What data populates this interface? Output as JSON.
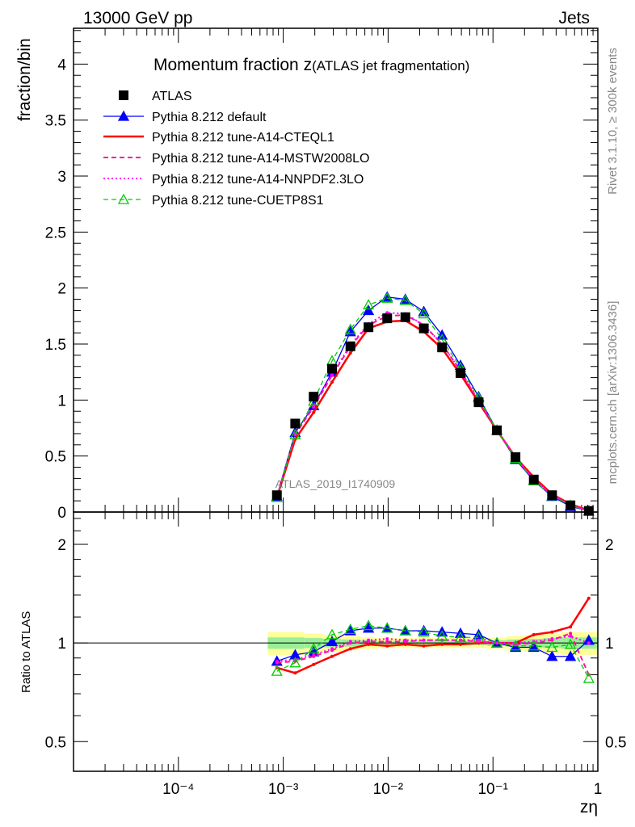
{
  "chart_data": {
    "type": "line",
    "header_left": "13000 GeV pp",
    "header_right": "Jets",
    "title_main": "Momentum fraction z",
    "title_sub": "(ATLAS jet fragmentation)",
    "ylabel": "fraction/bin",
    "ratio_ylabel": "Ratio to ATLAS",
    "xlabel": "zη",
    "watermark": "ATLAS_2019_I1740909",
    "side_text_top": "Rivet 3.1.10, ≥ 300k events",
    "side_text_bottom": "mcplots.cern.ch [arXiv:1306.3436]",
    "xscale": "log",
    "xlim": [
      1e-05,
      1
    ],
    "ylim": [
      0,
      4.32
    ],
    "ratio_ylim": [
      0.406,
      2.51
    ],
    "x_tick_labels": [
      "10⁻⁴",
      "10⁻³",
      "10⁻²",
      "10⁻¹",
      "1"
    ],
    "x_tick_values": [
      0.0001,
      0.001,
      0.01,
      0.1,
      1
    ],
    "y_tick_labels": [
      "0",
      "0.5",
      "1",
      "1.5",
      "2",
      "2.5",
      "3",
      "3.5",
      "4"
    ],
    "y_tick_values": [
      0,
      0.5,
      1,
      1.5,
      2,
      2.5,
      3,
      3.5,
      4
    ],
    "ratio_tick_labels": [
      "0.5",
      "1",
      "2"
    ],
    "ratio_tick_values": [
      0.5,
      1,
      2
    ],
    "ratio_tick_labels_right": [
      "0.5",
      "1",
      "2"
    ],
    "x": [
      0.00087,
      0.0013,
      0.00195,
      0.00292,
      0.00437,
      0.0065,
      0.0098,
      0.0146,
      0.0219,
      0.0327,
      0.049,
      0.073,
      0.109,
      0.164,
      0.245,
      0.366,
      0.548,
      0.82
    ],
    "data": {
      "name": "ATLAS",
      "values": [
        0.15,
        0.79,
        1.03,
        1.28,
        1.48,
        1.65,
        1.73,
        1.74,
        1.64,
        1.47,
        1.24,
        0.98,
        0.73,
        0.49,
        0.29,
        0.15,
        0.06,
        0.01
      ],
      "band_outer": [
        0.08,
        0.08,
        0.07,
        0.06,
        0.05,
        0.04,
        0.035,
        0.035,
        0.035,
        0.035,
        0.035,
        0.035,
        0.04,
        0.05,
        0.06,
        0.07,
        0.08,
        0.08
      ],
      "band_inner": [
        0.04,
        0.04,
        0.035,
        0.03,
        0.025,
        0.02,
        0.015,
        0.015,
        0.015,
        0.015,
        0.015,
        0.015,
        0.02,
        0.025,
        0.03,
        0.035,
        0.04,
        0.04
      ],
      "color": "#000000"
    },
    "series": [
      {
        "name": "Pythia 8.212 default",
        "color": "#0000ff",
        "style": "solid",
        "marker": "triangle-filled",
        "width": 1.3,
        "values": [
          0.14,
          0.71,
          0.95,
          1.25,
          1.61,
          1.8,
          1.92,
          1.9,
          1.79,
          1.58,
          1.31,
          1.03,
          0.73,
          0.47,
          0.28,
          0.14,
          0.05,
          0.01
        ],
        "ratio": [
          0.88,
          0.92,
          0.94,
          1.01,
          1.09,
          1.11,
          1.11,
          1.09,
          1.09,
          1.08,
          1.07,
          1.06,
          1.0,
          0.97,
          0.97,
          0.91,
          0.91,
          1.02
        ]
      },
      {
        "name": "Pythia 8.212 tune-A14-CTEQL1",
        "color": "#ff0000",
        "style": "solid",
        "marker": "dot",
        "width": 2.5,
        "values": [
          0.13,
          0.65,
          0.89,
          1.16,
          1.42,
          1.64,
          1.7,
          1.71,
          1.61,
          1.46,
          1.23,
          0.98,
          0.73,
          0.49,
          0.31,
          0.16,
          0.07,
          0.014
        ],
        "ratio": [
          0.84,
          0.81,
          0.86,
          0.91,
          0.96,
          0.99,
          0.98,
          0.99,
          0.98,
          0.99,
          0.99,
          1.0,
          1.0,
          1.0,
          1.06,
          1.08,
          1.12,
          1.37
        ]
      },
      {
        "name": "Pythia 8.212 tune-A14-MSTW2008LO",
        "color": "#ff1493",
        "style": "dashed",
        "marker": "dot",
        "width": 2,
        "values": [
          0.13,
          0.69,
          0.94,
          1.22,
          1.48,
          1.67,
          1.75,
          1.76,
          1.67,
          1.5,
          1.26,
          0.99,
          0.73,
          0.49,
          0.29,
          0.15,
          0.064,
          0.008
        ],
        "ratio": [
          0.87,
          0.88,
          0.91,
          0.95,
          1.0,
          1.01,
          1.01,
          1.01,
          1.02,
          1.02,
          1.02,
          1.01,
          1.0,
          0.99,
          1.0,
          1.02,
          1.07,
          0.8
        ]
      },
      {
        "name": "Pythia 8.212 tune-A14-NNPDF2.3LO",
        "color": "#ff00ff",
        "style": "dotted",
        "marker": "dot",
        "width": 2,
        "values": [
          0.13,
          0.7,
          0.95,
          1.23,
          1.49,
          1.68,
          1.78,
          1.77,
          1.67,
          1.5,
          1.26,
          1.0,
          0.73,
          0.49,
          0.29,
          0.155,
          0.063,
          0.01
        ],
        "ratio": [
          0.88,
          0.89,
          0.92,
          0.96,
          1.01,
          1.02,
          1.03,
          1.02,
          1.02,
          1.02,
          1.02,
          1.02,
          1.0,
          1.0,
          1.01,
          1.03,
          1.05,
          1.0
        ]
      },
      {
        "name": "Pythia 8.212 tune-CUETP8S1",
        "color": "#00cc00",
        "style": "dashed",
        "marker": "triangle-open",
        "width": 1.3,
        "values": [
          0.13,
          0.69,
          0.99,
          1.35,
          1.63,
          1.85,
          1.91,
          1.89,
          1.77,
          1.54,
          1.29,
          1.02,
          0.73,
          0.48,
          0.28,
          0.145,
          0.06,
          0.008
        ],
        "ratio": [
          0.82,
          0.87,
          0.96,
          1.06,
          1.1,
          1.13,
          1.11,
          1.09,
          1.08,
          1.05,
          1.04,
          1.04,
          1.0,
          0.98,
          0.98,
          0.97,
          0.99,
          0.78
        ]
      }
    ],
    "colors": {
      "band_outer": "#ffff99",
      "band_inner": "#99ee99"
    },
    "grid": false,
    "legend_position": "top-left"
  }
}
